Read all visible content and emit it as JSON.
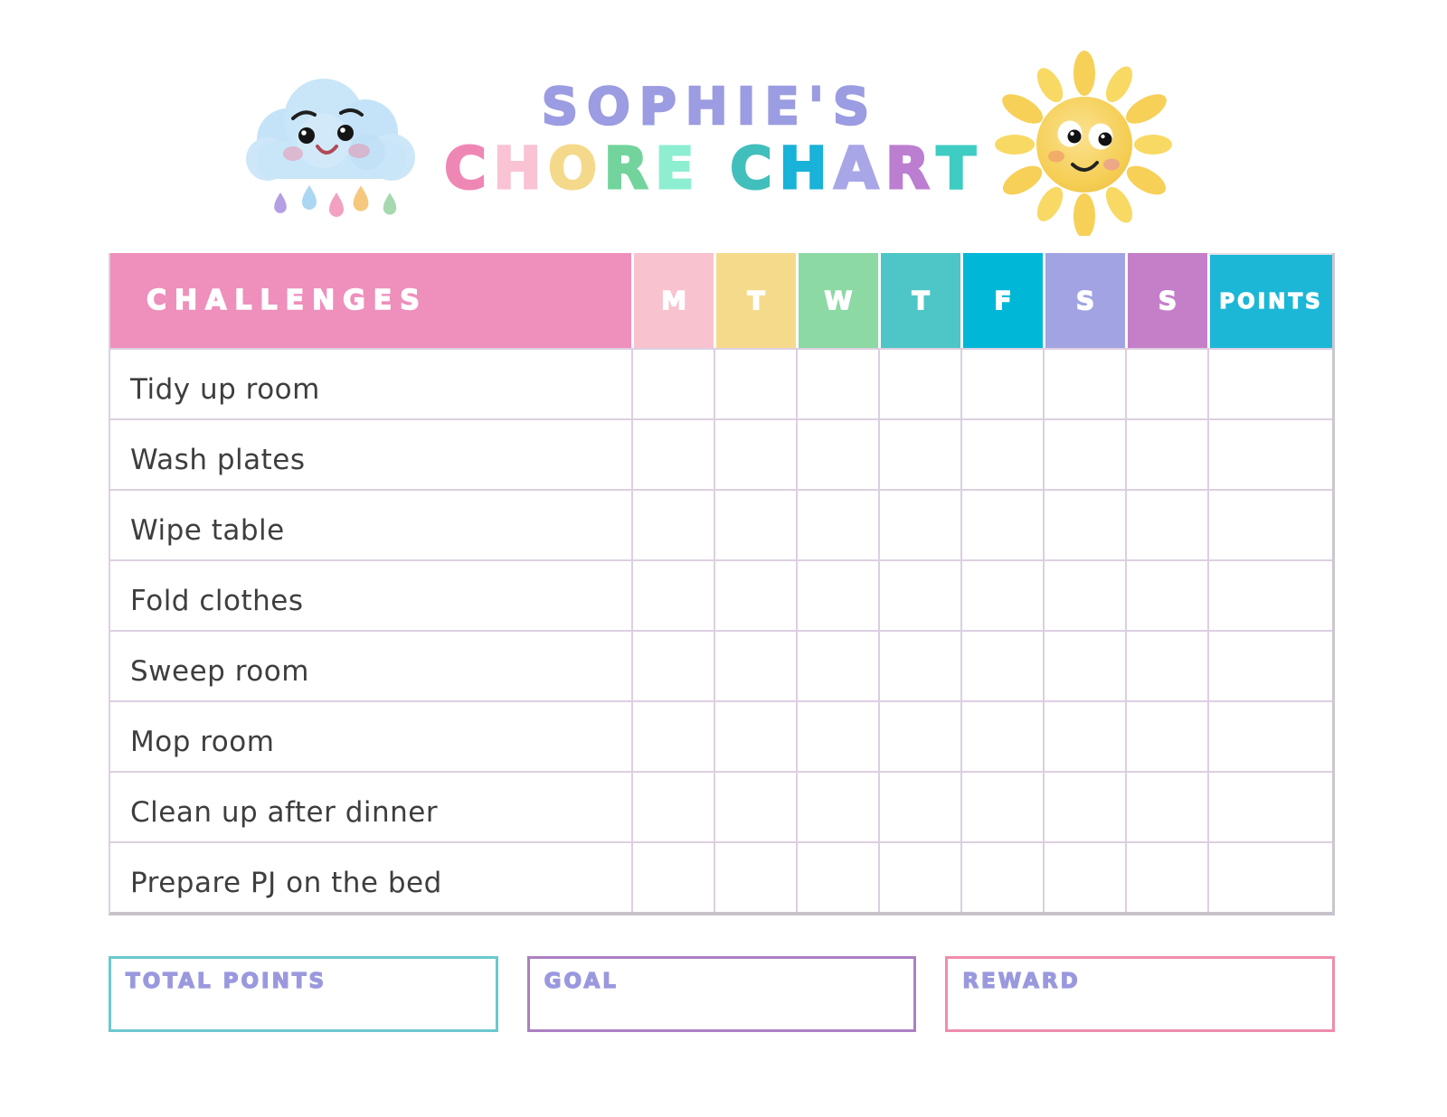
{
  "title": {
    "line1": "SOPHIE'S",
    "line1_color": "#9b9ce1",
    "line2_letters": [
      {
        "ch": "C",
        "color": "#ef87b4"
      },
      {
        "ch": "H",
        "color": "#f9c3d4"
      },
      {
        "ch": "O",
        "color": "#f5d98b"
      },
      {
        "ch": "R",
        "color": "#72d49c"
      },
      {
        "ch": "E",
        "color": "#8deed2"
      },
      {
        "ch": " ",
        "color": ""
      },
      {
        "ch": "C",
        "color": "#41bfbc"
      },
      {
        "ch": "H",
        "color": "#19b2d8"
      },
      {
        "ch": "A",
        "color": "#a8a6e6"
      },
      {
        "ch": "R",
        "color": "#bc7ed0"
      },
      {
        "ch": "T",
        "color": "#3fccc2"
      }
    ]
  },
  "illustrations": {
    "cloud": "smiling-watercolor-cloud-with-raindrops",
    "raindrop_colors": [
      "#b59fe3",
      "#abd7f2",
      "#f2a2c0",
      "#f6c87e",
      "#a6d9b0"
    ],
    "sun": "smiling-watercolor-sun"
  },
  "table": {
    "challenges_header": "CHALLENGES",
    "header_bg": "#ee8fbc",
    "points_header": "POINTS",
    "points_bg": "#1cb7d6",
    "days": [
      {
        "label": "M",
        "color": "#f8c2cf"
      },
      {
        "label": "T",
        "color": "#f6da8c"
      },
      {
        "label": "W",
        "color": "#8cd9a4"
      },
      {
        "label": "T",
        "color": "#4ec6c8"
      },
      {
        "label": "F",
        "color": "#00b7d8"
      },
      {
        "label": "S",
        "color": "#a2a3e2"
      },
      {
        "label": "S",
        "color": "#c57fc9"
      }
    ],
    "chores": [
      "Tidy up room",
      "Wash plates",
      "Wipe table",
      "Fold clothes",
      "Sweep room",
      "Mop room",
      "Clean up after dinner",
      "Prepare PJ on the bed"
    ]
  },
  "footer": {
    "label_color": "#9a99de",
    "boxes": [
      {
        "label": "TOTAL POINTS",
        "border_color": "#6cc8ce"
      },
      {
        "label": "GOAL",
        "border_color": "#ac7fc3"
      },
      {
        "label": "REWARD",
        "border_color": "#ef8dab"
      }
    ]
  }
}
